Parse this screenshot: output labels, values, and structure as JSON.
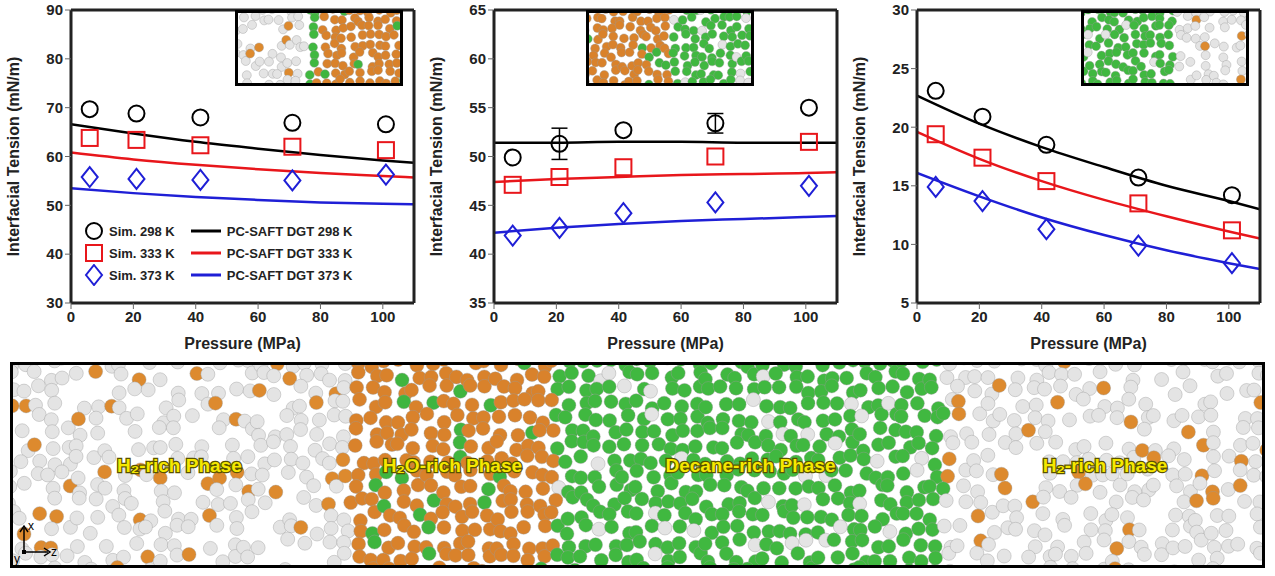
{
  "chart_data": [
    {
      "type": "line",
      "x_label": "Pressure (MPa)",
      "y_label": "Interfacial Tension (mN/m)",
      "xlim": [
        0,
        110
      ],
      "xticks": [
        0,
        20,
        40,
        60,
        80,
        100
      ],
      "ylim": [
        30,
        90
      ],
      "yticks": [
        30,
        40,
        50,
        60,
        70,
        80,
        90
      ],
      "legend": "lower left",
      "series": [
        {
          "name": "Sim. 298 K",
          "type": "scatter",
          "marker": "circle",
          "color": "#000000",
          "x": [
            6,
            21,
            41.5,
            71,
            101
          ],
          "values": [
            69.7,
            68.8,
            68.0,
            66.9,
            66.6
          ]
        },
        {
          "name": "Sim. 333 K",
          "type": "scatter",
          "marker": "square",
          "color": "#e8161b",
          "x": [
            6,
            21,
            41.5,
            71,
            101
          ],
          "values": [
            63.8,
            63.4,
            62.3,
            62.0,
            61.3
          ]
        },
        {
          "name": "Sim. 373 K",
          "type": "scatter",
          "marker": "diamond",
          "color": "#1f1fd6",
          "x": [
            6,
            21,
            41.5,
            71,
            101
          ],
          "values": [
            55.8,
            55.4,
            55.2,
            55.1,
            56.3
          ]
        },
        {
          "name": "PC-SAFT DGT 298 K",
          "type": "line",
          "line_style": "solid",
          "color": "#000000",
          "x": [
            0,
            20,
            40,
            60,
            80,
            100,
            110
          ],
          "values": [
            66.6,
            64.7,
            63.0,
            61.6,
            60.3,
            59.2,
            58.7
          ]
        },
        {
          "name": "PC-SAFT DGT 333 K",
          "type": "line",
          "line_style": "solid",
          "color": "#e8161b",
          "x": [
            0,
            20,
            40,
            60,
            80,
            100,
            110
          ],
          "values": [
            60.8,
            59.4,
            58.3,
            57.4,
            56.6,
            56.0,
            55.7
          ]
        },
        {
          "name": "PC-SAFT DGT 373 K",
          "type": "line",
          "line_style": "solid",
          "color": "#1f1fd6",
          "x": [
            0,
            20,
            40,
            60,
            80,
            100,
            110
          ],
          "values": [
            53.5,
            52.5,
            51.7,
            51.1,
            50.6,
            50.3,
            50.2
          ]
        }
      ]
    },
    {
      "type": "line",
      "x_label": "Pressure (MPa)",
      "y_label": "Interfacial Tension (mN/m)",
      "xlim": [
        0,
        110
      ],
      "xticks": [
        0,
        20,
        40,
        60,
        80,
        100
      ],
      "ylim": [
        35,
        65
      ],
      "yticks": [
        35,
        40,
        45,
        50,
        55,
        60,
        65
      ],
      "series": [
        {
          "type": "scatter",
          "marker": "circle",
          "color": "#000000",
          "x": [
            6,
            21,
            41.5,
            71,
            101
          ],
          "values": [
            49.9,
            51.3,
            52.7,
            53.4,
            55.0
          ],
          "errors": [
            null,
            1.6,
            null,
            1.0,
            null
          ]
        },
        {
          "type": "scatter",
          "marker": "square",
          "color": "#e8161b",
          "x": [
            6,
            21,
            41.5,
            71,
            101
          ],
          "values": [
            47.1,
            47.9,
            48.9,
            50.0,
            51.5
          ]
        },
        {
          "type": "scatter",
          "marker": "diamond",
          "color": "#1f1fd6",
          "x": [
            6,
            21,
            41.5,
            71,
            101
          ],
          "values": [
            41.9,
            42.7,
            44.2,
            45.3,
            47.0
          ]
        },
        {
          "type": "line",
          "line_style": "solid",
          "color": "#000000",
          "x": [
            0,
            20,
            40,
            60,
            80,
            100,
            110
          ],
          "values": [
            51.4,
            51.4,
            51.5,
            51.5,
            51.4,
            51.4,
            51.4
          ]
        },
        {
          "type": "line",
          "line_style": "solid",
          "color": "#e8161b",
          "x": [
            0,
            20,
            40,
            60,
            80,
            100,
            110
          ],
          "values": [
            47.4,
            47.7,
            47.9,
            48.1,
            48.2,
            48.3,
            48.4
          ]
        },
        {
          "type": "line",
          "line_style": "solid",
          "color": "#1f1fd6",
          "x": [
            0,
            20,
            40,
            60,
            80,
            100,
            110
          ],
          "values": [
            42.2,
            42.7,
            43.1,
            43.4,
            43.6,
            43.8,
            43.9
          ]
        }
      ]
    },
    {
      "type": "line",
      "x_label": "Pressure (MPa)",
      "y_label": "Interfacial Tension (mN/m)",
      "xlim": [
        0,
        110
      ],
      "xticks": [
        0,
        20,
        40,
        60,
        80,
        100
      ],
      "ylim": [
        5,
        30
      ],
      "yticks": [
        5,
        10,
        15,
        20,
        25,
        30
      ],
      "series": [
        {
          "type": "scatter",
          "marker": "circle",
          "color": "#000000",
          "x": [
            6,
            21,
            41.5,
            71,
            101
          ],
          "values": [
            23.1,
            20.9,
            18.5,
            15.7,
            14.2
          ]
        },
        {
          "type": "scatter",
          "marker": "square",
          "color": "#e8161b",
          "x": [
            6,
            21,
            41.5,
            71,
            101
          ],
          "values": [
            19.4,
            17.4,
            15.4,
            13.5,
            11.2
          ]
        },
        {
          "type": "scatter",
          "marker": "diamond",
          "color": "#1f1fd6",
          "x": [
            6,
            21,
            41.5,
            71,
            101
          ],
          "values": [
            14.9,
            13.7,
            11.3,
            9.9,
            8.4
          ]
        },
        {
          "type": "line",
          "line_style": "solid",
          "color": "#000000",
          "x": [
            0,
            20,
            40,
            60,
            80,
            100,
            110
          ],
          "values": [
            22.7,
            20.3,
            18.3,
            16.6,
            15.0,
            13.7,
            13.0
          ]
        },
        {
          "type": "line",
          "line_style": "solid",
          "color": "#e8161b",
          "x": [
            0,
            20,
            40,
            60,
            80,
            100,
            110
          ],
          "values": [
            19.6,
            17.3,
            15.4,
            13.8,
            12.4,
            11.1,
            10.5
          ]
        },
        {
          "type": "line",
          "line_style": "solid",
          "color": "#1f1fd6",
          "x": [
            0,
            20,
            40,
            60,
            80,
            100,
            110
          ],
          "values": [
            16.1,
            14.1,
            12.3,
            10.8,
            9.5,
            8.4,
            7.9
          ]
        }
      ]
    }
  ],
  "snapshot": {
    "phases": [
      "H₂-rich Phase",
      "H₂O-rich Phase",
      "Decane-rich Phase",
      "H₂-rich Phase"
    ],
    "axes": [
      "x",
      "y",
      "z"
    ]
  }
}
